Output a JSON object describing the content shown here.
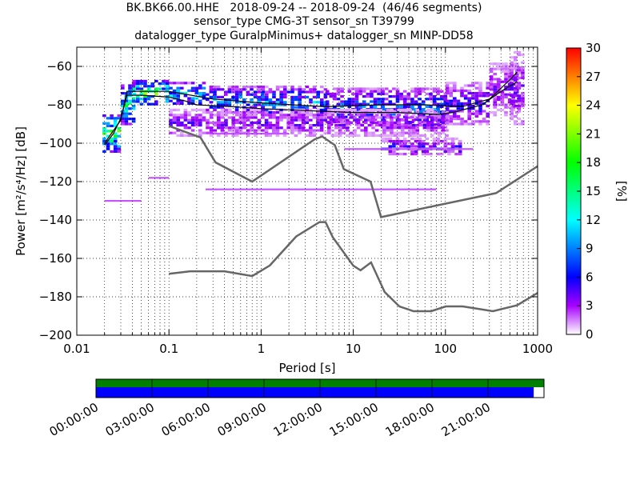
{
  "title": {
    "line1": "BK.BK66.00.HHE   2018-09-24 -- 2018-09-24  (46/46 segments)",
    "line2": "sensor_type CMG-3T sensor_sn T39799",
    "line3": "datalogger_type GuralpMinimus+ datalogger_sn MINP-DD58"
  },
  "chart_data": {
    "type": "heatmap",
    "xlabel": "Period [s]",
    "ylabel": "Power [m²/s⁴/Hz] [dB]",
    "x_scale": "log",
    "xlim": [
      0.01,
      1000
    ],
    "ylim": [
      -200,
      -50
    ],
    "x_ticks": [
      {
        "value": 0.01,
        "label": "0.01"
      },
      {
        "value": 0.1,
        "label": "0.1"
      },
      {
        "value": 1,
        "label": "1"
      },
      {
        "value": 10,
        "label": "10"
      },
      {
        "value": 100,
        "label": "100"
      },
      {
        "value": 1000,
        "label": "1000"
      }
    ],
    "y_ticks": [
      {
        "value": -60,
        "label": "−60"
      },
      {
        "value": -80,
        "label": "−80"
      },
      {
        "value": -100,
        "label": "−100"
      },
      {
        "value": -120,
        "label": "−120"
      },
      {
        "value": -140,
        "label": "−140"
      },
      {
        "value": -160,
        "label": "−160"
      },
      {
        "value": -180,
        "label": "−180"
      },
      {
        "value": -200,
        "label": "−200"
      }
    ],
    "colorbar": {
      "label": "[%]",
      "min": 0,
      "max": 30,
      "ticks": [
        {
          "value": 0,
          "label": "0"
        },
        {
          "value": 3,
          "label": "3"
        },
        {
          "value": 6,
          "label": "6"
        },
        {
          "value": 9,
          "label": "9"
        },
        {
          "value": 12,
          "label": "12"
        },
        {
          "value": 15,
          "label": "15"
        },
        {
          "value": 18,
          "label": "18"
        },
        {
          "value": 21,
          "label": "21"
        },
        {
          "value": 24,
          "label": "24"
        },
        {
          "value": 27,
          "label": "27"
        },
        {
          "value": 30,
          "label": "30"
        }
      ]
    },
    "nhnm": [
      [
        0.1,
        -91
      ],
      [
        0.22,
        -97
      ],
      [
        0.32,
        -110
      ],
      [
        0.8,
        -120
      ],
      [
        3.8,
        -98
      ],
      [
        4.6,
        -96.5
      ],
      [
        6.3,
        -101
      ],
      [
        7.9,
        -113.5
      ],
      [
        15.4,
        -120
      ],
      [
        20,
        -138.5
      ],
      [
        354,
        -126
      ],
      [
        1000,
        -112
      ]
    ],
    "nlnm": [
      [
        0.1,
        -168
      ],
      [
        0.17,
        -166.7
      ],
      [
        0.4,
        -166.7
      ],
      [
        0.8,
        -169.2
      ],
      [
        1.24,
        -163.7
      ],
      [
        2.4,
        -148.6
      ],
      [
        4.3,
        -141.1
      ],
      [
        5,
        -141.1
      ],
      [
        6,
        -149
      ],
      [
        10,
        -163.8
      ],
      [
        12,
        -166.2
      ],
      [
        15.6,
        -162.1
      ],
      [
        21.9,
        -177.5
      ],
      [
        31.6,
        -185
      ],
      [
        45,
        -187.5
      ],
      [
        70,
        -187.5
      ],
      [
        101,
        -185
      ],
      [
        154,
        -185
      ],
      [
        328,
        -187.5
      ],
      [
        600,
        -184.4
      ],
      [
        1000,
        -178
      ]
    ],
    "mean": [
      [
        0.02,
        -101
      ],
      [
        0.025,
        -95
      ],
      [
        0.03,
        -87
      ],
      [
        0.035,
        -75
      ],
      [
        0.05,
        -75
      ],
      [
        0.1,
        -76
      ],
      [
        0.15,
        -78
      ],
      [
        0.2,
        -80
      ],
      [
        0.5,
        -81
      ],
      [
        1,
        -82
      ],
      [
        3,
        -83
      ],
      [
        10,
        -84
      ],
      [
        30,
        -84
      ],
      [
        80,
        -85
      ],
      [
        120,
        -84
      ],
      [
        250,
        -80
      ],
      [
        400,
        -73
      ],
      [
        600,
        -68
      ]
    ],
    "mode": [
      [
        0.02,
        -100
      ],
      [
        0.03,
        -88
      ],
      [
        0.035,
        -73
      ],
      [
        0.1,
        -73
      ],
      [
        0.3,
        -77
      ],
      [
        1,
        -79
      ],
      [
        5,
        -81
      ],
      [
        20,
        -80
      ],
      [
        60,
        -80
      ],
      [
        150,
        -81
      ],
      [
        300,
        -77
      ],
      [
        500,
        -67
      ],
      [
        600,
        -63
      ]
    ],
    "heat_bands": [
      {
        "x": [
          0.019,
          0.03
        ],
        "y": [
          -104,
          -85
        ],
        "value": 14
      },
      {
        "x": [
          0.03,
          0.04
        ],
        "y": [
          -90,
          -68
        ],
        "value": 11
      },
      {
        "x": [
          0.04,
          0.1
        ],
        "y": [
          -80,
          -67
        ],
        "value": 13
      },
      {
        "x": [
          0.1,
          0.25
        ],
        "y": [
          -80,
          -68
        ],
        "value": 9
      },
      {
        "x": [
          0.25,
          1
        ],
        "y": [
          -84,
          -70
        ],
        "value": 7
      },
      {
        "x": [
          1,
          5
        ],
        "y": [
          -86,
          -70
        ],
        "value": 7
      },
      {
        "x": [
          5,
          20
        ],
        "y": [
          -90,
          -71
        ],
        "value": 6
      },
      {
        "x": [
          20,
          100
        ],
        "y": [
          -92,
          -71
        ],
        "value": 6
      },
      {
        "x": [
          100,
          300
        ],
        "y": [
          -90,
          -68
        ],
        "value": 4
      },
      {
        "x": [
          300,
          600
        ],
        "y": [
          -85,
          -58
        ],
        "value": 3
      },
      {
        "x": [
          500,
          700
        ],
        "y": [
          -90,
          -52
        ],
        "value": 3
      },
      {
        "x": [
          20,
          140
        ],
        "y": [
          -106,
          -97
        ],
        "value": 4
      },
      {
        "x": [
          0.1,
          100
        ],
        "y": [
          -96,
          -82
        ],
        "value": 3
      }
    ],
    "heat_lines": [
      {
        "x": [
          0.25,
          80
        ],
        "y": -124,
        "value": 1
      },
      {
        "x": [
          0.3,
          2
        ],
        "y": -95,
        "value": 1
      },
      {
        "x": [
          8,
          200
        ],
        "y": -103,
        "value": 1
      },
      {
        "x": [
          0.06,
          0.1
        ],
        "y": -118,
        "value": 1
      },
      {
        "x": [
          0.02,
          0.05
        ],
        "y": -130,
        "value": 1
      }
    ],
    "colors": {
      "noise_model_line": "#666666",
      "stat_line": "#000000",
      "grid": "#000000"
    }
  },
  "timeline": {
    "labels": [
      "00:00:00",
      "03:00:00",
      "06:00:00",
      "09:00:00",
      "12:00:00",
      "15:00:00",
      "18:00:00",
      "21:00:00"
    ],
    "data_coverage_fraction": 0.977,
    "available_color": "#008000",
    "data_color": "#0000ff"
  }
}
